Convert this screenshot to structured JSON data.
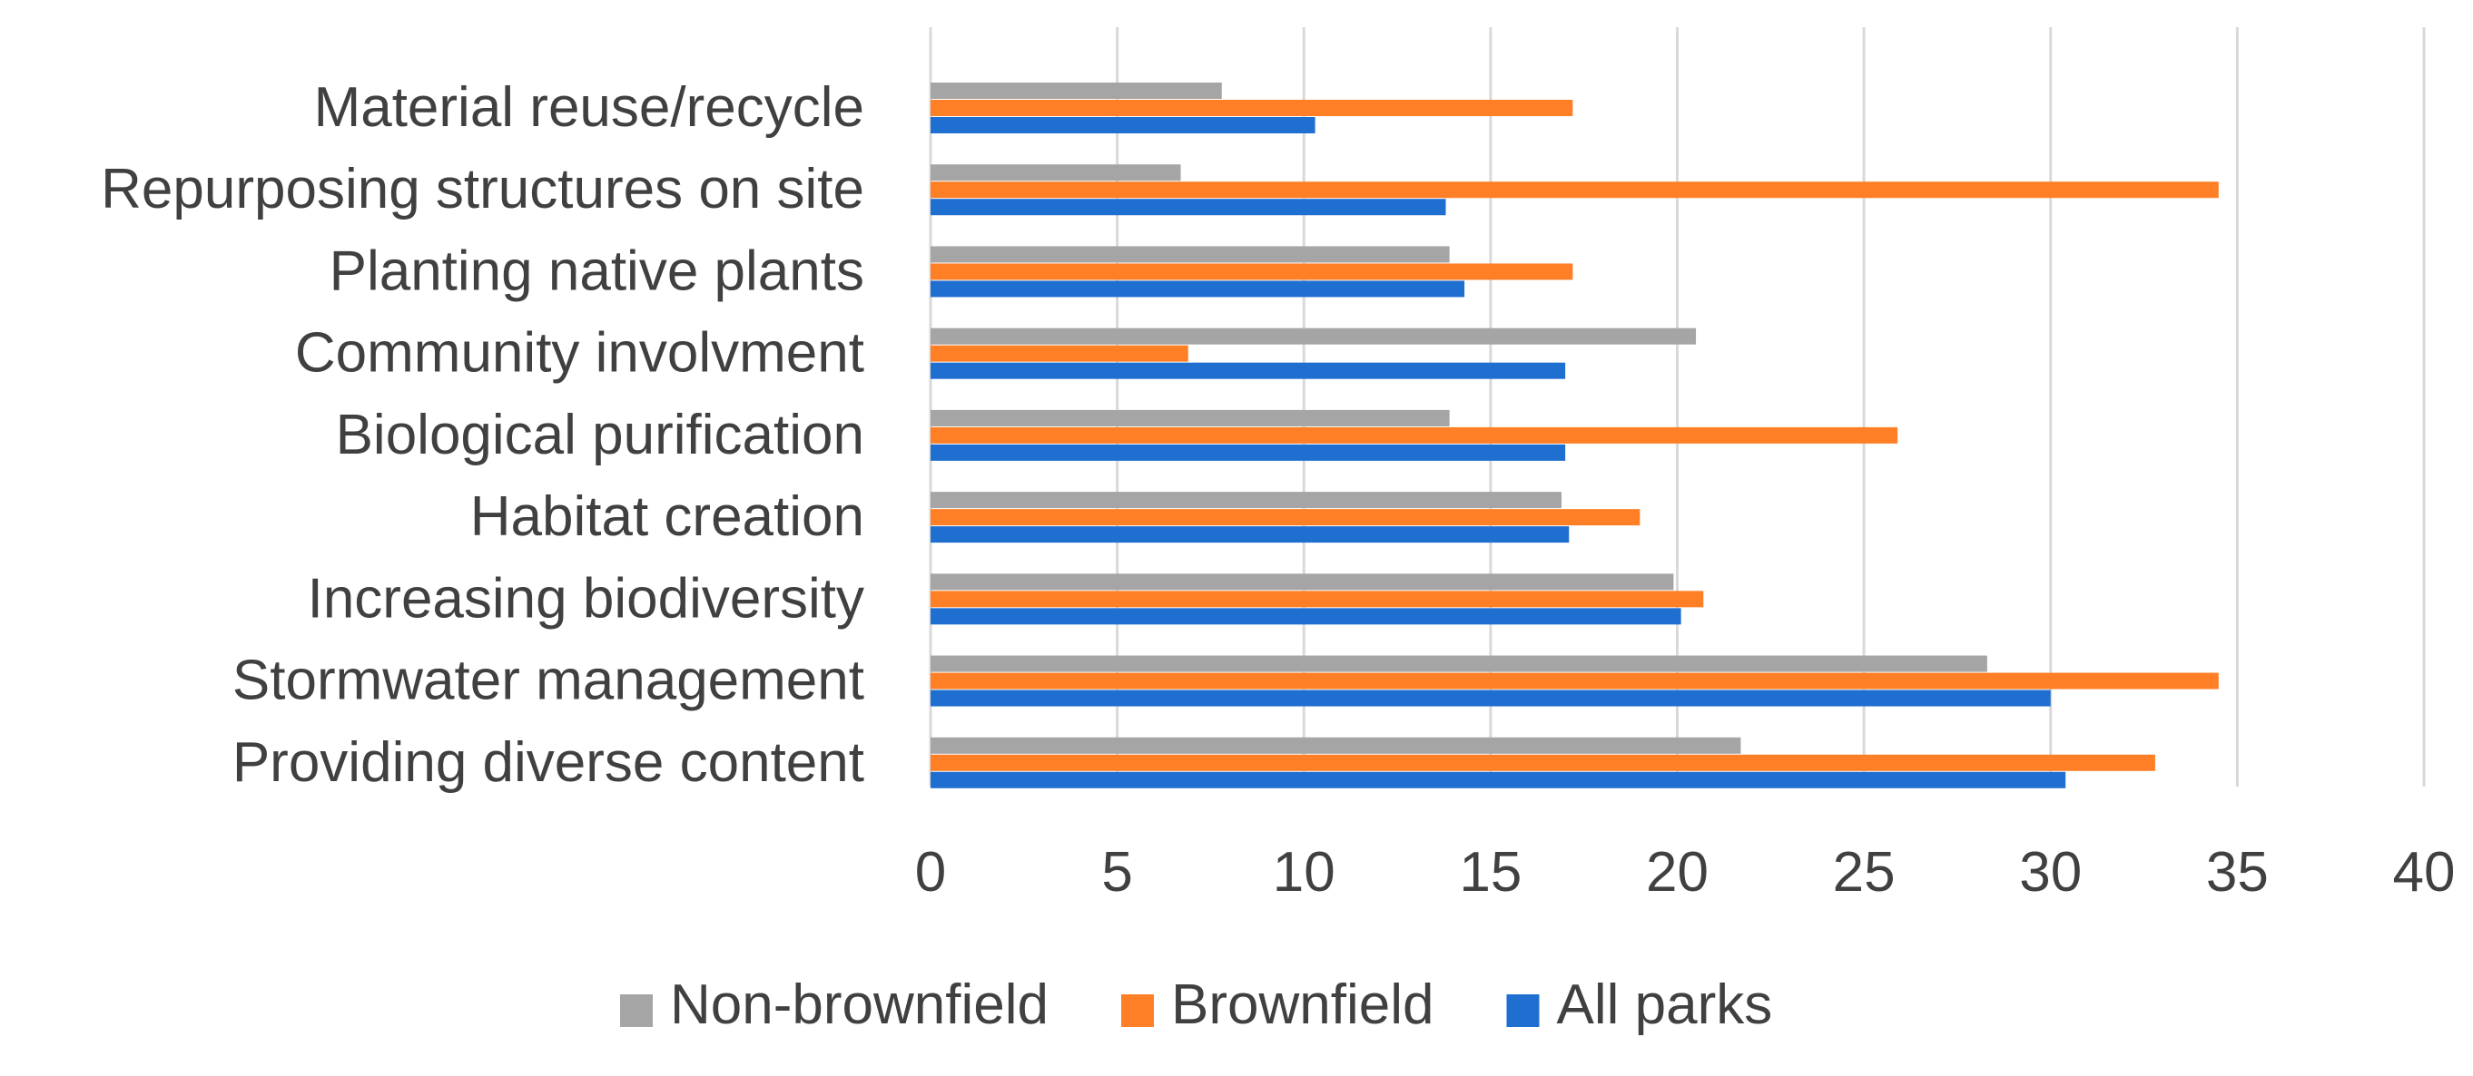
{
  "chart_data": {
    "type": "bar",
    "orientation": "horizontal",
    "title": "",
    "xlabel": "",
    "ylabel": "",
    "xlim": [
      0,
      40
    ],
    "ticks": [
      0,
      5,
      10,
      15,
      20,
      25,
      30,
      35,
      40
    ],
    "grid": true,
    "legend_position": "bottom",
    "categories": [
      "Material reuse/recycle",
      "Repurposing structures on site",
      "Planting native  plants",
      "Community involvment",
      "Biological purification",
      "Habitat creation",
      "Increasing biodiversity",
      "Stormwater management",
      "Providing diverse content"
    ],
    "series": [
      {
        "name": "Non-brownfield",
        "color": "#a5a5a5",
        "values": [
          7.8,
          6.7,
          13.9,
          20.5,
          13.9,
          16.9,
          19.9,
          28.3,
          21.7
        ]
      },
      {
        "name": "Brownfield",
        "color": "#ff7f27",
        "values": [
          17.2,
          34.5,
          17.2,
          6.9,
          25.9,
          19.0,
          20.7,
          34.5,
          32.8
        ]
      },
      {
        "name": "All parks",
        "color": "#1f6fd1",
        "values": [
          10.3,
          13.8,
          14.3,
          17.0,
          17.0,
          17.1,
          20.1,
          30.0,
          30.4
        ]
      }
    ]
  }
}
